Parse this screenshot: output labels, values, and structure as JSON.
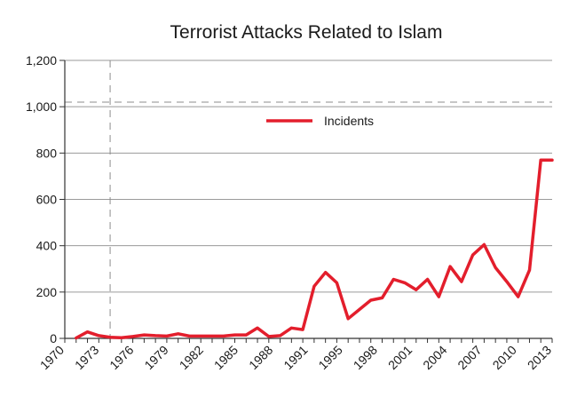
{
  "chart_data": {
    "type": "line",
    "title": "Terrorist Attacks Related to Islam",
    "xlabel": "",
    "ylabel": "",
    "ylim": [
      0,
      1200
    ],
    "y_ticks": [
      0,
      200,
      400,
      600,
      800,
      1000,
      1200
    ],
    "y_tick_labels": [
      "0",
      "200",
      "400",
      "600",
      "800",
      "1,000",
      "1,200"
    ],
    "x_range": [
      1970,
      2013
    ],
    "x_tick_labels": [
      "1970",
      "1973",
      "1976",
      "1979",
      "1982",
      "1985",
      "1988",
      "1991",
      "1995",
      "1998",
      "2001",
      "2004",
      "2007",
      "2010",
      "2013"
    ],
    "reference_lines": {
      "vertical_x": 1974,
      "horizontal_y": 1020
    },
    "legend": {
      "position": "top-center",
      "entries": [
        "Incidents"
      ]
    },
    "series": [
      {
        "name": "Incidents",
        "color": "#e31e2c",
        "x": [
          1971,
          1972,
          1973,
          1974,
          1975,
          1976,
          1977,
          1978,
          1979,
          1980,
          1981,
          1982,
          1983,
          1984,
          1985,
          1986,
          1987,
          1988,
          1989,
          1990,
          1991,
          1992,
          1993,
          1994,
          1995,
          1996,
          1997,
          1998,
          1999,
          2000,
          2001,
          2002,
          2003,
          2004,
          2005,
          2006,
          2007,
          2008,
          2009,
          2010,
          2011,
          2012,
          2013
        ],
        "values": [
          2,
          28,
          12,
          5,
          3,
          8,
          15,
          12,
          10,
          20,
          10,
          10,
          10,
          10,
          15,
          15,
          45,
          8,
          12,
          45,
          38,
          225,
          285,
          240,
          85,
          125,
          165,
          175,
          255,
          240,
          210,
          255,
          180,
          310,
          245,
          360,
          405,
          305,
          245,
          180,
          295,
          770,
          770
        ]
      }
    ]
  }
}
